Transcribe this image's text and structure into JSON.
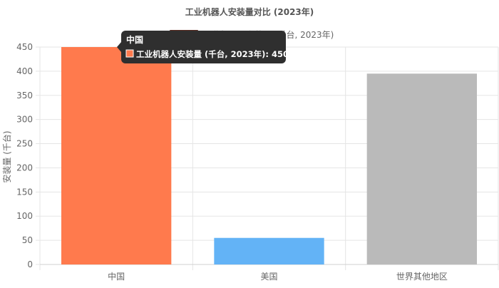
{
  "chart_data": {
    "type": "bar",
    "title": "工业机器人安装量对比 (2023年)",
    "xlabel": "",
    "ylabel": "安装量 (千台)",
    "categories": [
      "中国",
      "美国",
      "世界其他地区"
    ],
    "series": [
      {
        "name": "工业机器人安装量 (千台, 2023年)",
        "values": [
          450,
          55,
          395
        ]
      }
    ],
    "ylim": [
      0,
      450
    ],
    "yticks": [
      0,
      50,
      100,
      150,
      200,
      250,
      300,
      350,
      400,
      450
    ],
    "grid": true,
    "legend_position": "top",
    "colors": {
      "bars": [
        "#FF7A4D",
        "#63B3F6",
        "#BABABA"
      ],
      "legend_swatch": "#5A2A20",
      "grid": "#E5E5E5",
      "axis_text": "#666666",
      "title_text": "#555555",
      "tooltip_bg": "#2F2F2F",
      "tooltip_text": "#FFFFFF"
    }
  },
  "tooltip": {
    "title": "中国",
    "label": "工业机器人安装量 (千台, 2023年): 450",
    "swatch_color": "#FF7A4D"
  }
}
